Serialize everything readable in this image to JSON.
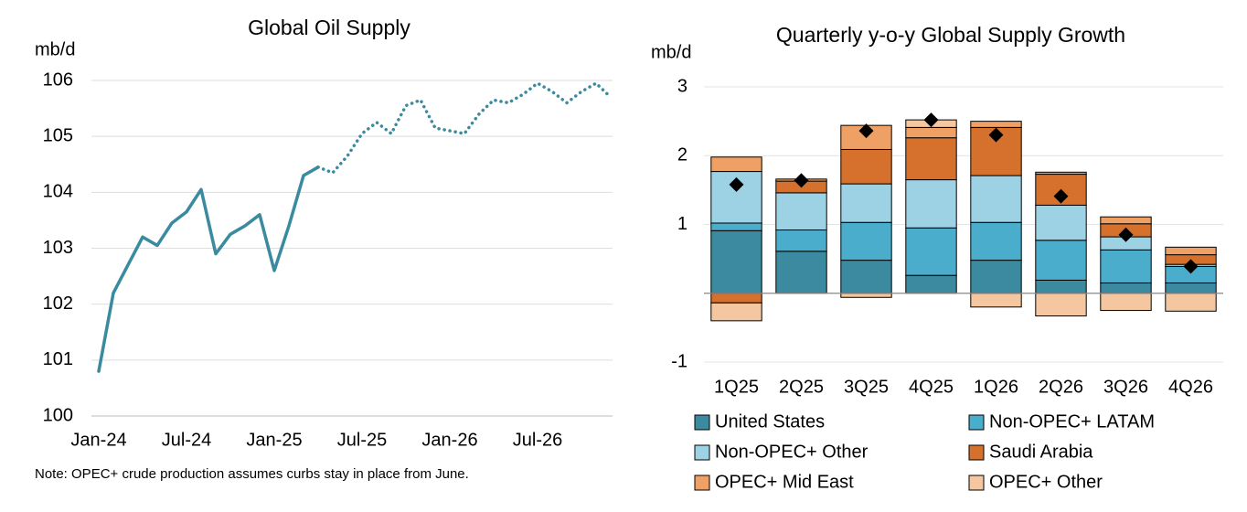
{
  "chart_data": [
    {
      "type": "line",
      "title": "Global Oil Supply",
      "y_label": "mb/d",
      "note": "Note: OPEC+ crude production assumes curbs stay in place from June.",
      "categories": [
        "Jan-24",
        null,
        null,
        null,
        null,
        null,
        "Jul-24",
        null,
        null,
        null,
        null,
        null,
        "Jan-25",
        null,
        null,
        null,
        null,
        null,
        "Jul-25",
        null,
        null,
        null,
        null,
        null,
        "Jan-26",
        null,
        null,
        null,
        null,
        null,
        "Jul-26",
        null,
        null,
        null,
        null,
        null
      ],
      "series": [
        {
          "style": "solid",
          "color": "#3a8aa0",
          "values": [
            100.8,
            102.2,
            102.7,
            103.2,
            103.05,
            103.45,
            103.65,
            104.05,
            102.9,
            103.25,
            103.4,
            103.6,
            102.6,
            103.4,
            104.3,
            104.45,
            null,
            null,
            null,
            null,
            null,
            null,
            null,
            null,
            null,
            null,
            null,
            null,
            null,
            null,
            null,
            null,
            null,
            null,
            null,
            null
          ]
        },
        {
          "style": "dotted",
          "color": "#3a8aa0",
          "values": [
            null,
            null,
            null,
            null,
            null,
            null,
            null,
            null,
            null,
            null,
            null,
            null,
            null,
            null,
            null,
            104.45,
            104.35,
            104.65,
            105.05,
            105.25,
            105.05,
            105.55,
            105.65,
            105.15,
            105.1,
            105.05,
            105.4,
            105.65,
            105.6,
            105.75,
            105.95,
            105.8,
            105.6,
            105.8,
            105.95,
            105.7
          ]
        }
      ],
      "ylim": [
        100,
        106
      ],
      "yticks": [
        100,
        101,
        102,
        103,
        104,
        105,
        106
      ],
      "grid": true
    },
    {
      "type": "stacked_bar",
      "title": "Quarterly y-o-y Global Supply Growth",
      "y_label": "mb/d",
      "categories": [
        "1Q25",
        "2Q25",
        "3Q25",
        "4Q25",
        "1Q26",
        "2Q26",
        "3Q26",
        "4Q26"
      ],
      "series": [
        {
          "name": "United States",
          "color": "#3b8aa0",
          "values": [
            0.91,
            0.61,
            0.48,
            0.26,
            0.48,
            0.19,
            0.15,
            0.15
          ]
        },
        {
          "name": "Non-OPEC+ LATAM",
          "color": "#4badcc",
          "values": [
            0.11,
            0.31,
            0.55,
            0.69,
            0.55,
            0.58,
            0.48,
            0.24
          ]
        },
        {
          "name": "Non-OPEC+ Other",
          "color": "#9dd2e4",
          "values": [
            0.75,
            0.54,
            0.56,
            0.7,
            0.68,
            0.51,
            0.19,
            0.03
          ]
        },
        {
          "name": "Saudi Arabia",
          "color": "#d5712d",
          "values": [
            -0.14,
            0.17,
            0.5,
            0.61,
            0.7,
            0.45,
            0.19,
            0.14
          ]
        },
        {
          "name": "OPEC+ Mid East",
          "color": "#efa064",
          "values": [
            0.21,
            0.03,
            0.35,
            0.15,
            0.09,
            0.03,
            0.1,
            0.11
          ]
        },
        {
          "name": "OPEC+ Other",
          "color": "#f4c7a0",
          "values": [
            -0.26,
            0,
            -0.06,
            0.11,
            -0.2,
            -0.33,
            -0.25,
            -0.26
          ]
        }
      ],
      "markers": {
        "color": "#000000",
        "values": [
          1.58,
          1.64,
          2.36,
          2.52,
          2.3,
          1.41,
          0.85,
          0.39
        ]
      },
      "ylim": [
        -1,
        3
      ],
      "yticks": [
        -1,
        1,
        2,
        3
      ],
      "grid": true
    }
  ]
}
